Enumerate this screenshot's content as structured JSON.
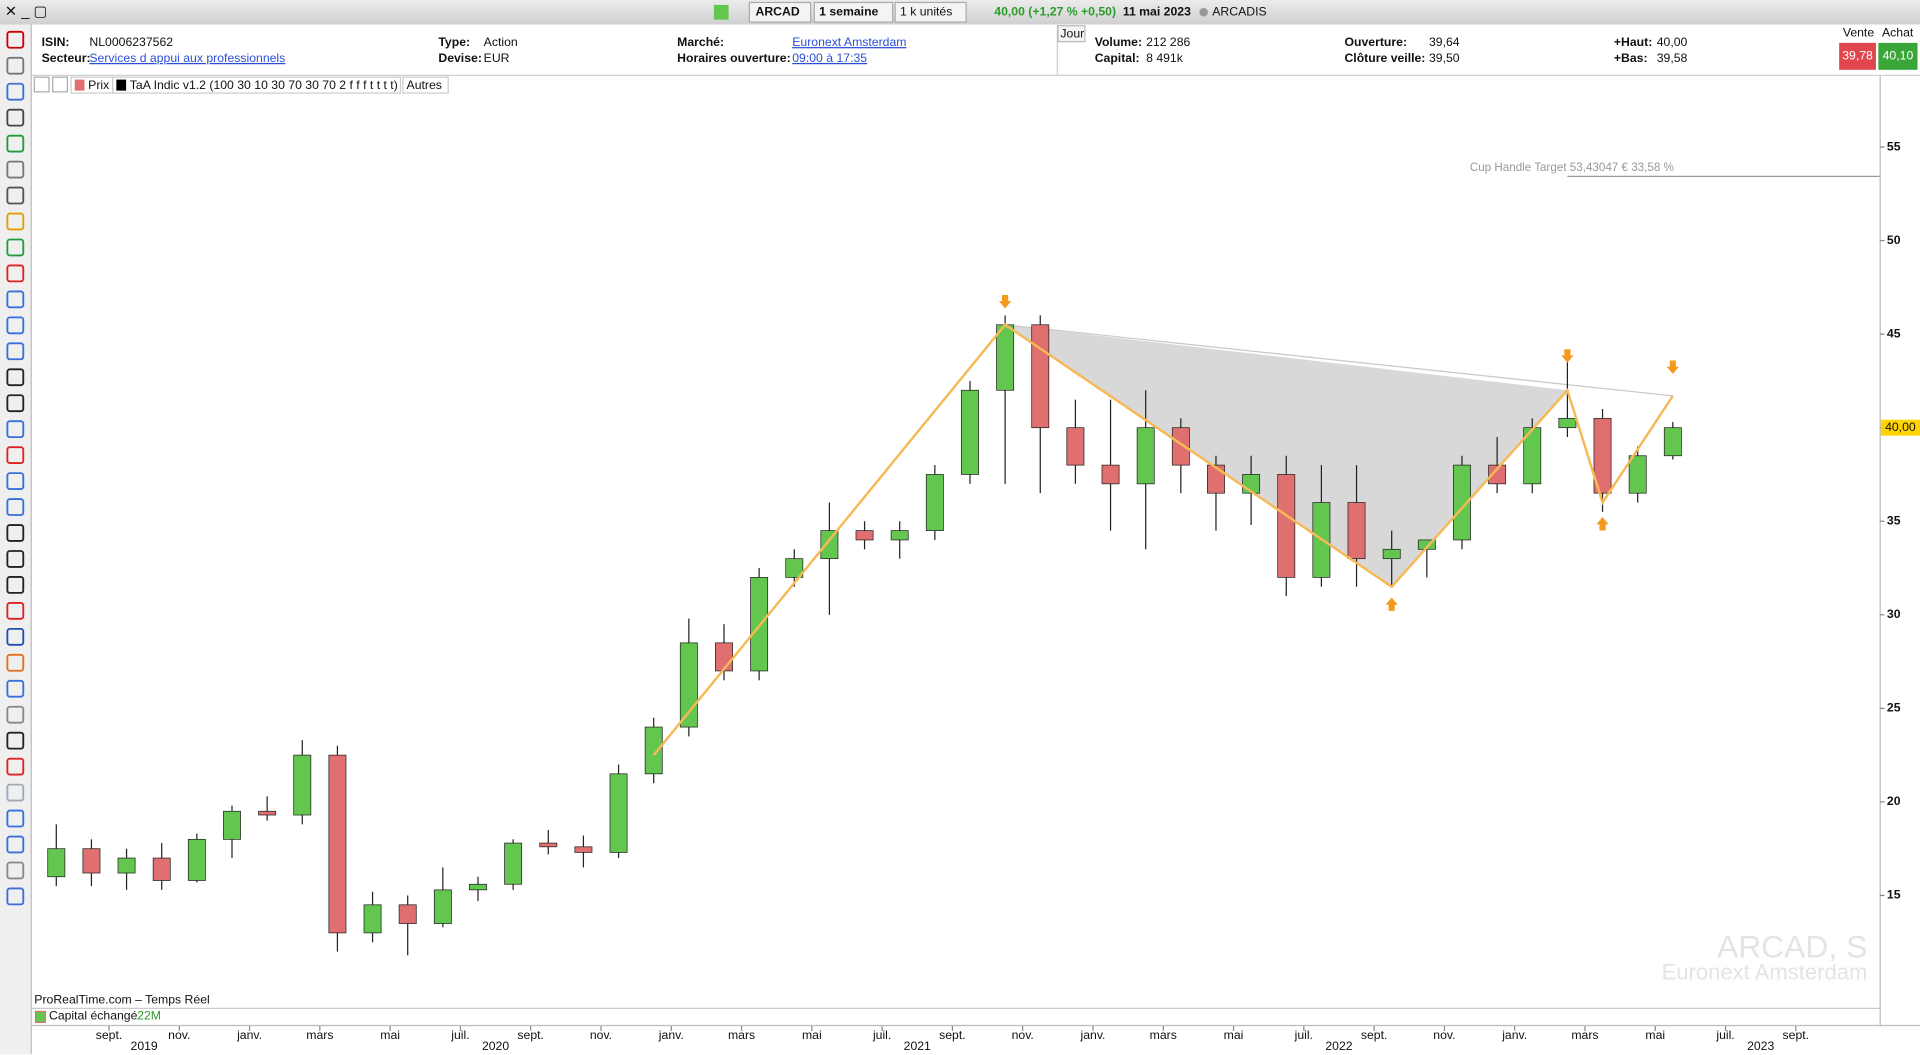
{
  "header": {
    "symbol": "ARCAD",
    "period": "1 semaine",
    "units": "1 k unités",
    "quote": "40,00 (+1,27 % +0,50)",
    "date": "11 mai 2023",
    "name": "ARCADIS"
  },
  "info": {
    "isin_label": "ISIN:",
    "isin": "NL0006237562",
    "sector_label": "Secteur:",
    "sector": "Services d appui aux professionnels",
    "type_label": "Type:",
    "type": "Action",
    "currency_label": "Devise:",
    "currency": "EUR",
    "market_label": "Marché:",
    "market": "Euronext Amsterdam",
    "hours_label": "Horaires ouverture:",
    "hours": "09:00 à 17:35",
    "period_tab": "Jour",
    "volume_label": "Volume:",
    "volume": "212 286",
    "capital_label": "Capital:",
    "capital": "8 491k",
    "open_label": "Ouverture:",
    "open": "39,64",
    "prev_close_label": "Clôture veille:",
    "prev_close": "39,50",
    "high_label": "+Haut:",
    "high": "40,00",
    "low_label": "+Bas:",
    "low": "39,58",
    "sell_label": "Vente",
    "sell": "39,78",
    "buy_label": "Achat",
    "buy": "40,10"
  },
  "indicators": {
    "price": "Prix",
    "indicator": "TaA Indic v1.2 (100 30 10 30 70 30 70 2 f f f t t t t)",
    "others": "Autres"
  },
  "chart_data": {
    "type": "candlestick",
    "x": [
      "2019-07",
      "2019-08",
      "2019-09",
      "2019-10",
      "2019-11",
      "2019-12",
      "2020-01",
      "2020-02",
      "2020-03",
      "2020-04",
      "2020-05",
      "2020-06",
      "2020-07",
      "2020-08",
      "2020-09",
      "2020-10",
      "2020-11",
      "2020-12",
      "2021-01",
      "2021-02",
      "2021-03",
      "2021-04",
      "2021-05",
      "2021-06",
      "2021-07",
      "2021-08",
      "2021-09",
      "2021-10",
      "2021-11",
      "2021-12",
      "2022-01",
      "2022-02",
      "2022-03",
      "2022-04",
      "2022-05",
      "2022-06",
      "2022-07",
      "2022-08",
      "2022-09",
      "2022-10",
      "2022-11",
      "2022-12",
      "2023-01",
      "2023-02",
      "2023-03",
      "2023-04",
      "2023-05"
    ],
    "open": [
      16,
      17.5,
      16.2,
      17,
      15.8,
      18,
      19.5,
      19.3,
      22.5,
      13,
      14.5,
      13.5,
      15.3,
      15.6,
      17.8,
      17.6,
      17.3,
      21.5,
      24,
      28.5,
      27,
      32,
      33,
      34.5,
      34,
      34.5,
      37.5,
      42,
      45.5,
      40,
      38,
      37,
      40,
      38,
      36.5,
      37.5,
      32,
      36,
      33,
      33.5,
      34,
      38,
      37,
      40,
      40.5,
      36.5,
      38.5
    ],
    "high": [
      18.8,
      18,
      17.5,
      17.8,
      18.3,
      19.8,
      20.3,
      23.3,
      23,
      15.2,
      15,
      16.5,
      16,
      18,
      18.5,
      18.2,
      22,
      24.5,
      29.8,
      29.5,
      32.5,
      33.5,
      36,
      35,
      35,
      38,
      42.5,
      46,
      46,
      41.5,
      41.5,
      42,
      40.5,
      38.5,
      38.5,
      38.5,
      38,
      38,
      34.5,
      34,
      38.5,
      39.5,
      40.5,
      43.5,
      41,
      39,
      40.3
    ],
    "low": [
      15.5,
      15.5,
      15.3,
      15.3,
      15.7,
      17,
      19,
      18.8,
      12,
      12.5,
      11.8,
      13.3,
      14.7,
      15.3,
      17.2,
      16.5,
      17,
      21,
      23.5,
      26.5,
      26.5,
      31.5,
      30,
      33.5,
      33,
      34,
      37,
      37,
      36.5,
      37,
      34.5,
      33.5,
      36.5,
      34.5,
      34.8,
      31,
      31.5,
      31.5,
      31.5,
      32,
      33.5,
      36.5,
      36.5,
      39.5,
      35.5,
      36,
      38.3
    ],
    "close": [
      17.5,
      16.2,
      17,
      15.8,
      18,
      19.5,
      19.3,
      22.5,
      13,
      14.5,
      13.5,
      15.3,
      15.6,
      17.8,
      17.6,
      17.3,
      21.5,
      24,
      28.5,
      27,
      32,
      33,
      34.5,
      34,
      34.5,
      37.5,
      42,
      45.5,
      40,
      38,
      37,
      40,
      38,
      36.5,
      37.5,
      32,
      36,
      33,
      33.5,
      34,
      38,
      37,
      40,
      40.5,
      36.5,
      38.5,
      40
    ],
    "up_color": "#63c74f",
    "down_color": "#e07070",
    "ylim": [
      9,
      58.8
    ],
    "yticks": [
      15,
      20,
      25,
      30,
      35,
      40,
      45,
      50,
      55
    ],
    "xticks": [
      {
        "value": "2019-09",
        "label": "sept."
      },
      {
        "value": "2019-11",
        "label": "nov."
      },
      {
        "value": "2020-01",
        "label": "janv."
      },
      {
        "value": "2020-03",
        "label": "mars"
      },
      {
        "value": "2020-05",
        "label": "mai"
      },
      {
        "value": "2020-07",
        "label": "juil."
      },
      {
        "value": "2020-09",
        "label": "sept."
      },
      {
        "value": "2020-11",
        "label": "nov."
      },
      {
        "value": "2021-01",
        "label": "janv."
      },
      {
        "value": "2021-03",
        "label": "mars"
      },
      {
        "value": "2021-05",
        "label": "mai"
      },
      {
        "value": "2021-07",
        "label": "juil."
      },
      {
        "value": "2021-09",
        "label": "sept."
      },
      {
        "value": "2021-11",
        "label": "nov."
      },
      {
        "value": "2022-01",
        "label": "janv."
      },
      {
        "value": "2022-03",
        "label": "mars"
      },
      {
        "value": "2022-05",
        "label": "mai"
      },
      {
        "value": "2022-07",
        "label": "juil."
      },
      {
        "value": "2022-09",
        "label": "sept."
      },
      {
        "value": "2022-11",
        "label": "nov."
      },
      {
        "value": "2023-01",
        "label": "janv."
      },
      {
        "value": "2023-03",
        "label": "mars"
      },
      {
        "value": "2023-05",
        "label": "mai"
      },
      {
        "value": "2023-07",
        "label": "juil."
      },
      {
        "value": "2023-09",
        "label": "sept."
      }
    ],
    "year_labels": [
      {
        "value": "2019-09",
        "label": "2019"
      },
      {
        "value": "2020-07",
        "label": "2020"
      },
      {
        "value": "2021-07",
        "label": "2021"
      },
      {
        "value": "2022-07",
        "label": "2022"
      },
      {
        "value": "2023-07",
        "label": "2023"
      }
    ],
    "pattern": {
      "color": "#f7b955",
      "x": [
        "2020-12",
        "2021-10",
        "2022-09",
        "2023-02",
        "2023-03",
        "2023-05"
      ],
      "y": [
        22.5,
        45.5,
        31.5,
        42,
        36,
        41.7
      ]
    },
    "arrows": [
      {
        "x": "2021-10",
        "y": 46.7,
        "direction": "down"
      },
      {
        "x": "2023-02",
        "y": 43.8,
        "direction": "down"
      },
      {
        "x": "2023-05",
        "y": 43.2,
        "direction": "down"
      },
      {
        "x": "2022-09",
        "y": 30.6,
        "direction": "up"
      },
      {
        "x": "2023-03",
        "y": 34.9,
        "direction": "up"
      }
    ],
    "target": {
      "label": "Cup Handle Target 53,43047 € 33,58 %",
      "value": 53.43047,
      "x": "2023-02"
    },
    "last_price": {
      "value": 40,
      "label": "40,00"
    },
    "watermark": [
      "ARCAD, S",
      "Euronext Amsterdam"
    ],
    "source": "ProRealTime.com – Temps Réel",
    "volume_label": "Capital échangé",
    "volume_value": "22M"
  }
}
